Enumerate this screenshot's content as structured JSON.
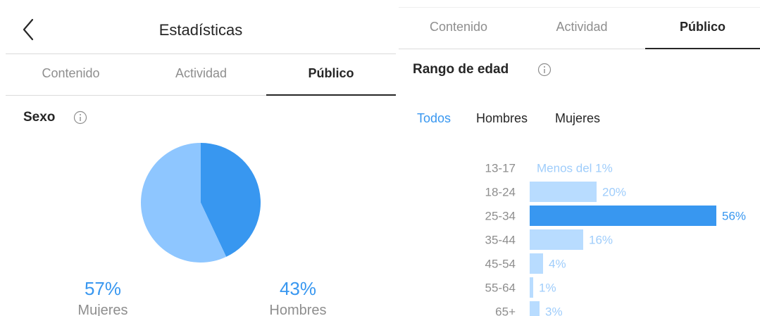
{
  "left": {
    "header": {
      "title": "Estadísticas"
    },
    "tabs": [
      {
        "label": "Contenido",
        "active": false
      },
      {
        "label": "Actividad",
        "active": false
      },
      {
        "label": "Público",
        "active": true
      }
    ],
    "section": {
      "title": "Sexo",
      "info_icon": "info-icon"
    },
    "chart_data": {
      "type": "pie",
      "title": "",
      "slices": [
        {
          "label": "Mujeres",
          "value": 57,
          "display": "57%",
          "color": "#8ec6ff"
        },
        {
          "label": "Hombres",
          "value": 43,
          "display": "43%",
          "color": "#3897f0"
        }
      ]
    }
  },
  "right": {
    "tabs": [
      {
        "label": "Contenido",
        "active": false
      },
      {
        "label": "Actividad",
        "active": false
      },
      {
        "label": "Público",
        "active": true
      }
    ],
    "section": {
      "title": "Rango de edad",
      "info_icon": "info-icon"
    },
    "filters": [
      {
        "label": "Todos",
        "active": true
      },
      {
        "label": "Hombres",
        "active": false
      },
      {
        "label": "Mujeres",
        "active": false
      }
    ],
    "chart_data": {
      "type": "bar",
      "orientation": "horizontal",
      "title": "",
      "categories": [
        "13-17",
        "18-24",
        "25-34",
        "35-44",
        "45-54",
        "55-64",
        "65+"
      ],
      "values": [
        0.5,
        20,
        56,
        16,
        4,
        1,
        3
      ],
      "value_labels": [
        "Menos del 1%",
        "20%",
        "56%",
        "16%",
        "4%",
        "1%",
        "3%"
      ],
      "highlight_index": 2,
      "colors": {
        "highlight": "#3897f0",
        "normal": "#b8dcff",
        "label_normal": "#9fcdfb"
      }
    }
  }
}
